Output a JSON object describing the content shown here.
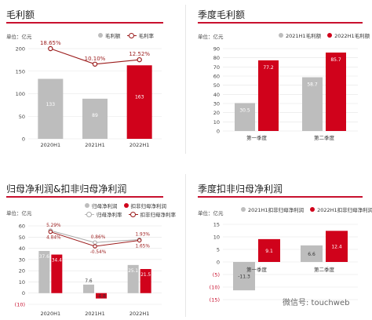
{
  "colors": {
    "gray": "#bdbdbd",
    "red": "#d0021b",
    "darkred": "#9b1b1b",
    "rule": "#c8102e"
  },
  "chart_data": [
    {
      "type": "bar",
      "title": "毛利额",
      "unit": "单位：亿元",
      "categories": [
        "2020H1",
        "2021H1",
        "2022H1"
      ],
      "bar_colors": [
        "gray",
        "gray",
        "red"
      ],
      "series": [
        {
          "name": "毛利额",
          "values": [
            133,
            89,
            163
          ],
          "value_labels": [
            "133",
            "89",
            "163"
          ]
        },
        {
          "name": "毛利率",
          "type": "line",
          "values": [
            18.65,
            10.1,
            12.52
          ],
          "value_labels": [
            "18.65%",
            "10.10%",
            "12.52%"
          ]
        }
      ],
      "ylim": [
        0,
        200
      ],
      "yticks": [
        "0",
        "50",
        "100",
        "150",
        "200"
      ],
      "legend": "top-right"
    },
    {
      "type": "bar",
      "title": "季度毛利额",
      "unit": "单位：亿元",
      "categories": [
        "第一季度",
        "第二季度"
      ],
      "series": [
        {
          "name": "2021H1毛利额",
          "values": [
            30.5,
            58.7
          ],
          "value_labels": [
            "30.5",
            "58.7"
          ]
        },
        {
          "name": "2022H1毛利额",
          "values": [
            77.2,
            85.7
          ],
          "value_labels": [
            "77.2",
            "85.7"
          ]
        }
      ],
      "ylim": [
        0,
        90
      ],
      "yticks": [
        "0",
        "10",
        "20",
        "30",
        "40",
        "50",
        "60",
        "70",
        "80",
        "90"
      ],
      "legend": "top-right"
    },
    {
      "type": "bar",
      "title": "归母净利润&扣非归母净利润",
      "unit": "单位：亿元",
      "categories": [
        "2020H1",
        "2021H1",
        "2022H1"
      ],
      "series": [
        {
          "name": "归母净利润",
          "values": [
            37.6,
            7.6,
            25.1
          ],
          "value_labels": [
            "37.6",
            "7.6",
            "25.1"
          ]
        },
        {
          "name": "扣非归母净利润",
          "values": [
            34.4,
            -4.8,
            21.5
          ],
          "value_labels": [
            "34.4",
            "-4.8",
            "21.5"
          ]
        },
        {
          "name": "归母净利率",
          "type": "line",
          "values": [
            5.29,
            0.86,
            1.93
          ],
          "value_labels": [
            "5.29%",
            "0.86%",
            "1.93%"
          ]
        },
        {
          "name": "扣非归母净利率",
          "type": "line",
          "values": [
            4.84,
            -0.54,
            1.65
          ],
          "value_labels": [
            "4.84%",
            "-0.54%",
            "1.65%"
          ]
        }
      ],
      "ylim": [
        -10,
        60
      ],
      "yticks": [
        "(10)",
        "0",
        "10",
        "20",
        "30",
        "40",
        "50",
        "60"
      ],
      "legend": "top-right"
    },
    {
      "type": "bar",
      "title": "季度扣非归母净利润",
      "unit": "单位：亿元",
      "categories": [
        "第一季度",
        "第二季度"
      ],
      "series": [
        {
          "name": "2021H1扣非归母净利润",
          "values": [
            -11.3,
            6.6
          ],
          "value_labels": [
            "-11.3",
            "6.6"
          ]
        },
        {
          "name": "2022H1扣非归母净利润",
          "values": [
            9.1,
            12.4
          ],
          "value_labels": [
            "9.1",
            "12.4"
          ]
        }
      ],
      "ylim": [
        -15,
        15
      ],
      "yticks": [
        "(15)",
        "(10)",
        "(5)",
        "0",
        "5",
        "10",
        "15"
      ],
      "legend": "top"
    }
  ],
  "watermark": "微信号: touchweb"
}
